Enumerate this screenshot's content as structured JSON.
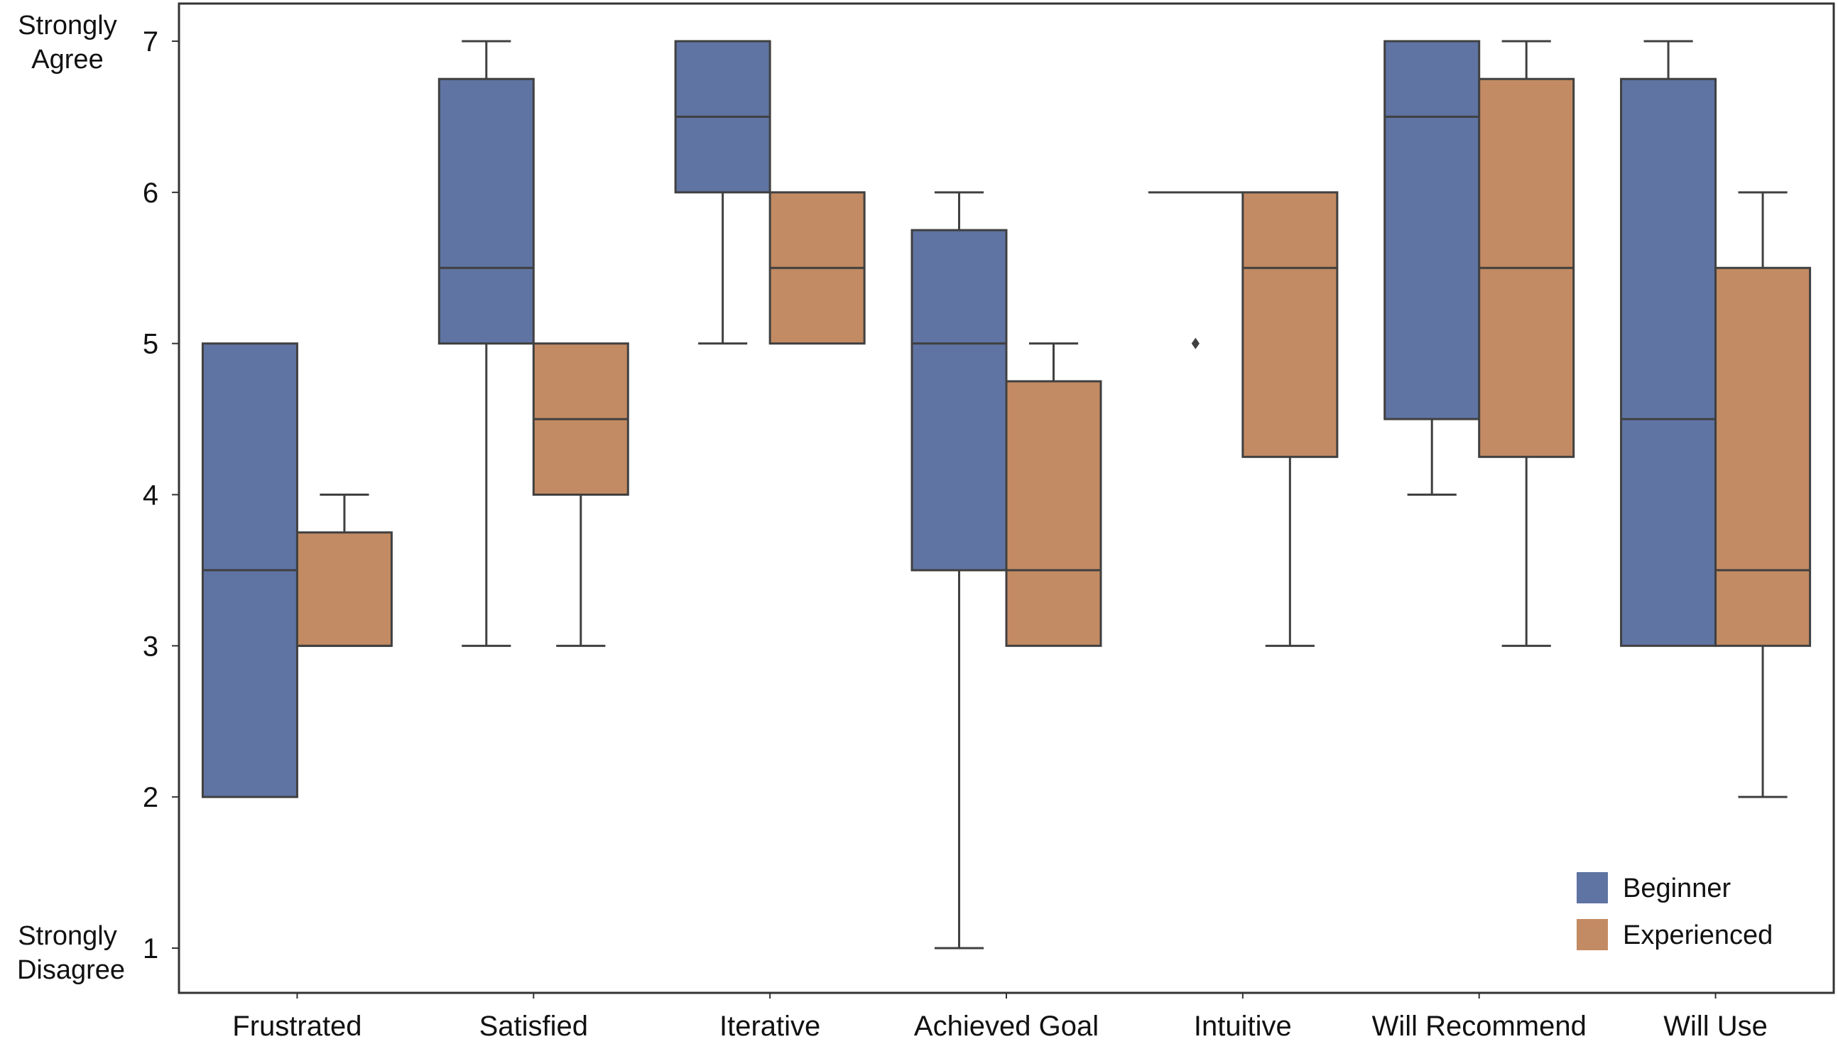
{
  "chart_data": {
    "type": "box",
    "title": "",
    "xlabel": "",
    "ylabel": "",
    "ylim": [
      0.75,
      7.25
    ],
    "y_ticks": [
      1,
      2,
      3,
      4,
      5,
      6,
      7
    ],
    "y_scale_labels": {
      "top": [
        "Strongly",
        "Agree"
      ],
      "bottom": [
        "Strongly",
        "Disagree"
      ]
    },
    "categories": [
      "Frustrated",
      "Satisfied",
      "Iterative",
      "Achieved Goal",
      "Intuitive",
      "Will Recommend",
      "Will Use"
    ],
    "legend": {
      "placement": "bottom-right"
    },
    "grid": false,
    "series": [
      {
        "name": "Beginner",
        "color": "#5f74a3",
        "boxes": [
          {
            "whisker_low": 2,
            "q1": 2,
            "median": 3.5,
            "q3": 5,
            "whisker_high": 5,
            "outliers": []
          },
          {
            "whisker_low": 3,
            "q1": 5,
            "median": 5.5,
            "q3": 6.75,
            "whisker_high": 7,
            "outliers": []
          },
          {
            "whisker_low": 5,
            "q1": 6,
            "median": 6.5,
            "q3": 7,
            "whisker_high": 7,
            "outliers": []
          },
          {
            "whisker_low": 1,
            "q1": 3.5,
            "median": 5,
            "q3": 5.75,
            "whisker_high": 6,
            "outliers": []
          },
          {
            "whisker_low": 6,
            "q1": 6,
            "median": 6,
            "q3": 6,
            "whisker_high": 6,
            "outliers": [
              5
            ]
          },
          {
            "whisker_low": 4,
            "q1": 4.5,
            "median": 6.5,
            "q3": 7,
            "whisker_high": 7,
            "outliers": []
          },
          {
            "whisker_low": 3,
            "q1": 3,
            "median": 4.5,
            "q3": 6.75,
            "whisker_high": 7,
            "outliers": []
          }
        ]
      },
      {
        "name": "Experienced",
        "color": "#c38b63",
        "boxes": [
          {
            "whisker_low": 3,
            "q1": 3,
            "median": 3,
            "q3": 3.75,
            "whisker_high": 4,
            "outliers": []
          },
          {
            "whisker_low": 3,
            "q1": 4,
            "median": 4.5,
            "q3": 5,
            "whisker_high": 5,
            "outliers": []
          },
          {
            "whisker_low": 5,
            "q1": 5,
            "median": 5.5,
            "q3": 6,
            "whisker_high": 6,
            "outliers": []
          },
          {
            "whisker_low": 3,
            "q1": 3,
            "median": 3.5,
            "q3": 4.75,
            "whisker_high": 5,
            "outliers": []
          },
          {
            "whisker_low": 3,
            "q1": 4.25,
            "median": 5.5,
            "q3": 6,
            "whisker_high": 6,
            "outliers": []
          },
          {
            "whisker_low": 3,
            "q1": 4.25,
            "median": 5.5,
            "q3": 6.75,
            "whisker_high": 7,
            "outliers": []
          },
          {
            "whisker_low": 2,
            "q1": 3,
            "median": 3.5,
            "q3": 5.5,
            "whisker_high": 6,
            "outliers": []
          }
        ]
      }
    ]
  }
}
